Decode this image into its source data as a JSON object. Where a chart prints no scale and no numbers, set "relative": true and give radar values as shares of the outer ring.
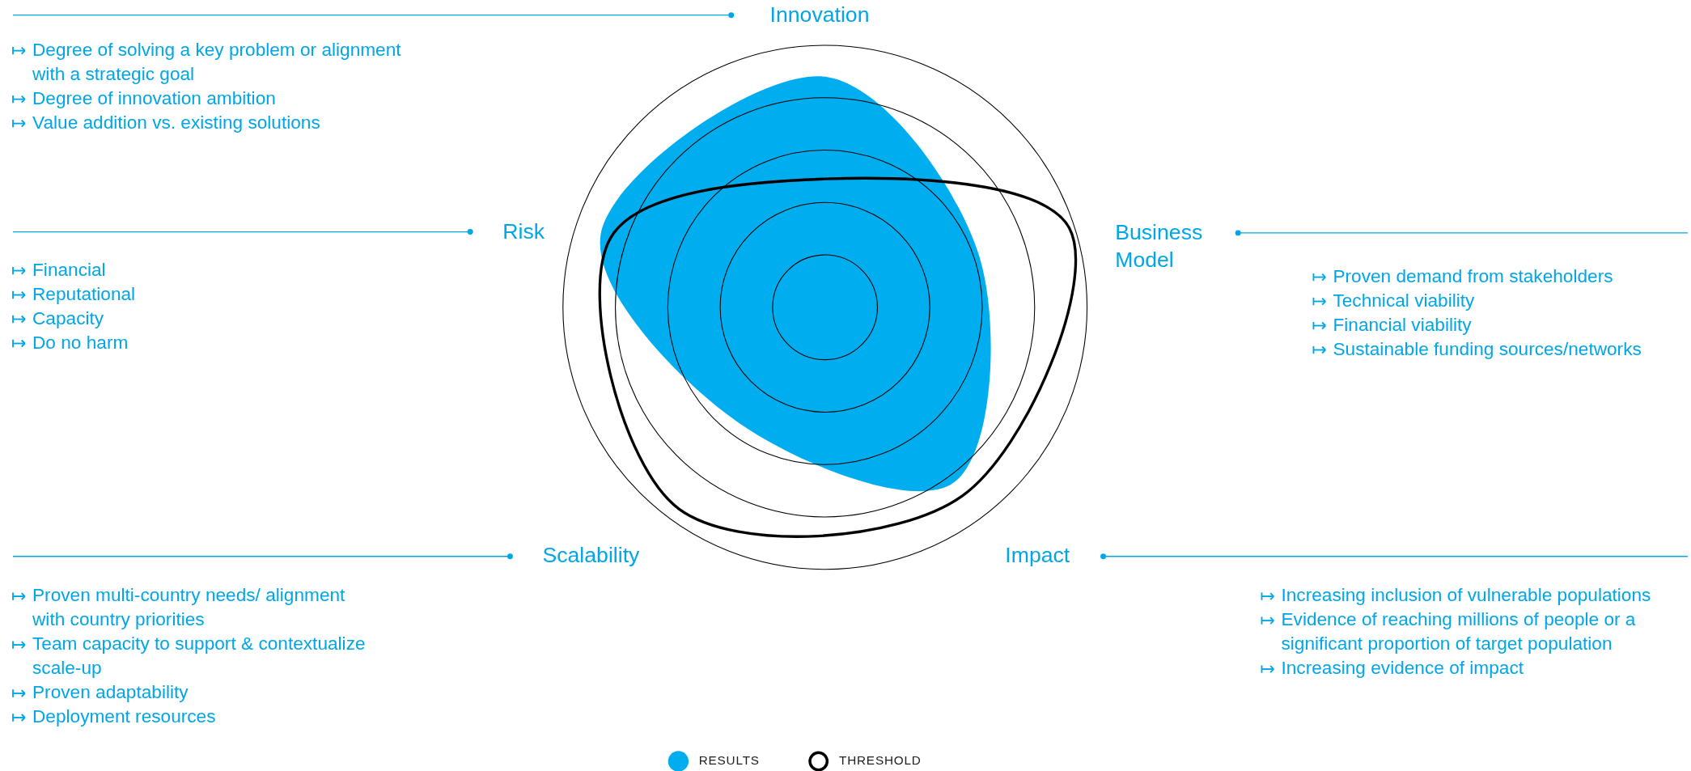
{
  "chart_data": {
    "type": "radar",
    "relative": true,
    "grid": true,
    "legend": "bottom",
    "categories": [
      "Innovation",
      "Business Model",
      "Impact",
      "Scalability",
      "Risk"
    ],
    "series": [
      {
        "name": "RESULTS",
        "color": "#00aeef",
        "values": [
          0.88,
          0.62,
          0.83,
          0.55,
          0.9
        ]
      },
      {
        "name": "THRESHOLD",
        "color": "#000000",
        "values": [
          0.49,
          0.98,
          0.89,
          0.95,
          0.86
        ]
      }
    ],
    "annotations": [
      "Degree of solving a key problem or alignment\nwith a strategic goal",
      "Degree of innovation ambition",
      "Value addition vs. existing solutions",
      "Proven demand from stakeholders",
      "Technical viability",
      "Financial viability",
      "Sustainable funding sources/networks",
      "Increasing inclusion of vulnerable populations",
      "Evidence of reaching millions of people or a\nsignificant proportion of target population",
      "Increasing evidence of impact",
      "Proven multi-country needs/ alignment\nwith country priorities",
      "Team capacity to support & contextualize\nscale-up",
      "Proven adaptability",
      "Deployment resources",
      "Financial",
      "Reputational",
      "Capacity",
      "Do no harm"
    ]
  }
}
